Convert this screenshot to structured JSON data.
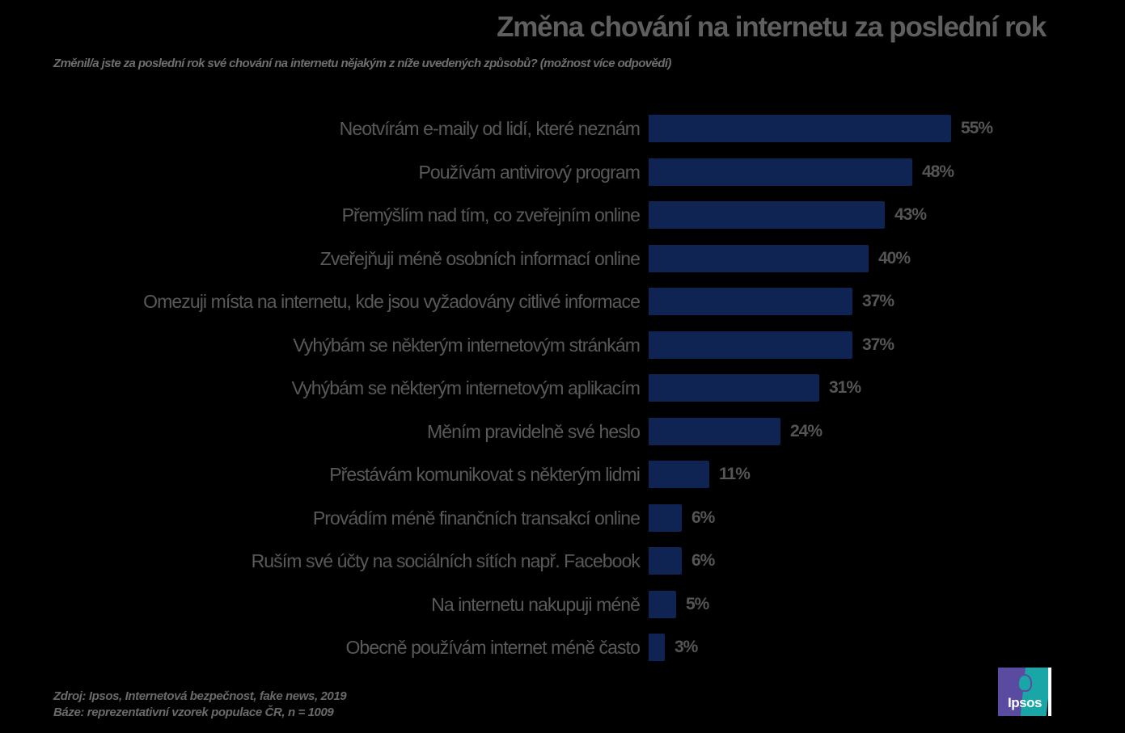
{
  "header": {
    "title": "Změna chování na internetu za poslední rok",
    "subtitle": "Změnil/a jste za poslední rok své chování na internetu nějakým z níže uvedených způsobů? (možnost více odpovědí)"
  },
  "colors": {
    "background": "#000000",
    "bar": "#0f2452",
    "label_text": "#595959",
    "value_text": "#555555",
    "logo_purple": "#5a4aa0",
    "logo_teal": "#1aa6a6"
  },
  "rows": [
    {
      "label": "Neotvírám e-maily od lidí, které neznám",
      "value": "55%"
    },
    {
      "label": "Používám antivirový program",
      "value": "48%"
    },
    {
      "label": "Přemýšlím nad tím, co zveřejním online",
      "value": "43%"
    },
    {
      "label": "Zveřejňuji méně osobních informací online",
      "value": "40%"
    },
    {
      "label": "Omezuji místa na internetu, kde jsou vyžadovány  citlivé informace",
      "value": "37%"
    },
    {
      "label": "Vyhýbám se některým internetovým stránkám",
      "value": "37%"
    },
    {
      "label": "Vyhýbám se některým internetovým aplikacím",
      "value": "31%"
    },
    {
      "label": "Měním pravidelně své heslo",
      "value": "24%"
    },
    {
      "label": "Přestávám komunikovat s některým lidmi",
      "value": "11%"
    },
    {
      "label": "Provádím méně finančních transakcí online",
      "value": "6%"
    },
    {
      "label": "Ruším své účty na sociálních sítích např. Facebook",
      "value": "6%"
    },
    {
      "label": "Na internetu nakupuji méně",
      "value": "5%"
    },
    {
      "label": "Obecně používám internet méně často",
      "value": "3%"
    }
  ],
  "footer": {
    "source": "Zdroj: Ipsos, Internetová bezpečnost, fake news, 2019",
    "base": "Báze: reprezentativní vzorek populace ČR, n = 1009"
  },
  "logo": {
    "text": "Ipsos"
  },
  "chart_data": {
    "type": "bar",
    "orientation": "horizontal",
    "title": "Změna chování na internetu za poslední rok",
    "subtitle": "Změnil/a jste za poslední rok své chování na internetu nějakým z níže uvedených způsobů? (možnost více odpovědí)",
    "categories": [
      "Neotvírám e-maily od lidí, které neznám",
      "Používám antivirový program",
      "Přemýšlím nad tím, co zveřejním online",
      "Zveřejňuji méně osobních informací online",
      "Omezuji místa na internetu, kde jsou vyžadovány  citlivé informace",
      "Vyhýbám se některým internetovým stránkám",
      "Vyhýbám se některým internetovým aplikacím",
      "Měním pravidelně své heslo",
      "Přestávám komunikovat s některým lidmi",
      "Provádím méně finančních transakcí online",
      "Ruším své účty na sociálních sítích např. Facebook",
      "Na internetu nakupuji méně",
      "Obecně používám internet méně často"
    ],
    "values": [
      55,
      48,
      43,
      40,
      37,
      37,
      31,
      24,
      11,
      6,
      6,
      5,
      3
    ],
    "data_labels": [
      "55%",
      "48%",
      "43%",
      "40%",
      "37%",
      "37%",
      "31%",
      "24%",
      "11%",
      "6%",
      "6%",
      "5%",
      "3%"
    ],
    "xlabel": "",
    "ylabel": "",
    "unit": "%",
    "axis_visible": false,
    "grid": false,
    "legend": null,
    "annotations": [
      "Zdroj: Ipsos, Internetová bezpečnost, fake news, 2019",
      "Báze: reprezentativní vzorek populace ČR, n = 1009"
    ]
  }
}
